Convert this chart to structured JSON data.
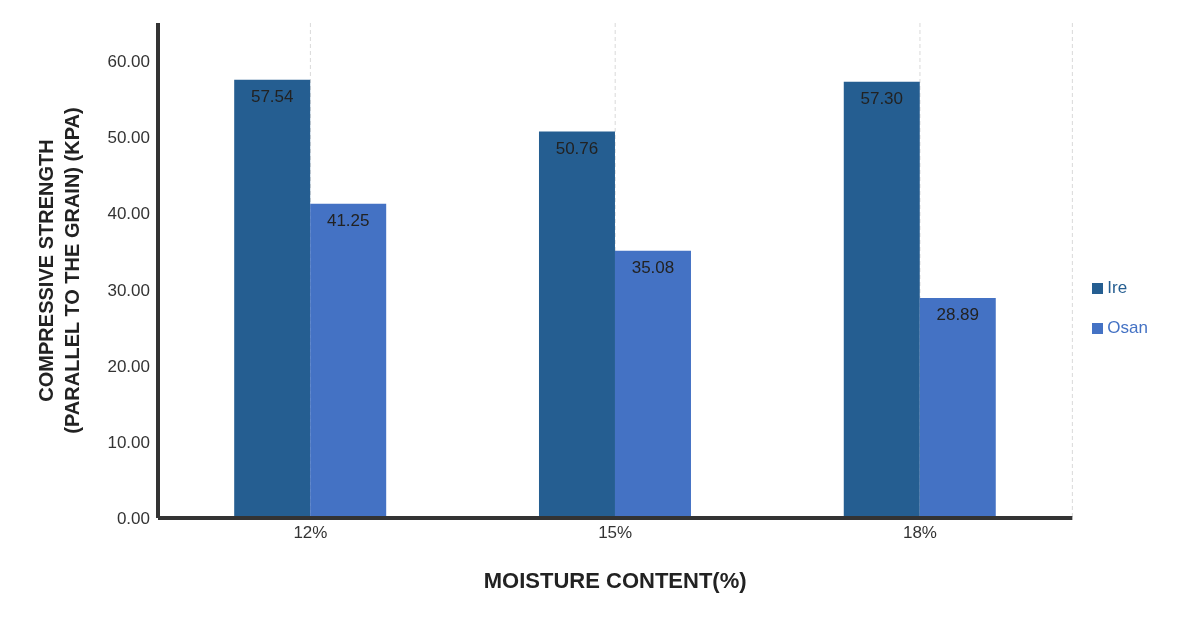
{
  "chart_data": {
    "type": "bar",
    "xlabel": "MOISTURE CONTENT(%)",
    "ylabel": "COMPRESSIVE STRENGTH (PARALLEL TO THE GRAIN) (KPA)",
    "categories": [
      "12%",
      "15%",
      "18%"
    ],
    "series": [
      {
        "name": "Ire",
        "color": "#255e91",
        "values": [
          57.54,
          50.76,
          57.3
        ],
        "value_labels": [
          "57.54",
          "50.76",
          "57.30"
        ]
      },
      {
        "name": "Osan",
        "color": "#4472c4",
        "values": [
          41.25,
          35.08,
          28.89
        ],
        "value_labels": [
          "41.25",
          "35.08",
          "28.89"
        ]
      }
    ],
    "ylim": [
      0,
      65
    ],
    "yticks": [
      {
        "value": 0,
        "label": "0.00"
      },
      {
        "value": 10,
        "label": "10.00"
      },
      {
        "value": 20,
        "label": "20.00"
      },
      {
        "value": 30,
        "label": "30.00"
      },
      {
        "value": 40,
        "label": "40.00"
      },
      {
        "value": 50,
        "label": "50.00"
      },
      {
        "value": 60,
        "label": "60.00"
      }
    ],
    "grid": "x",
    "legend": "right"
  }
}
